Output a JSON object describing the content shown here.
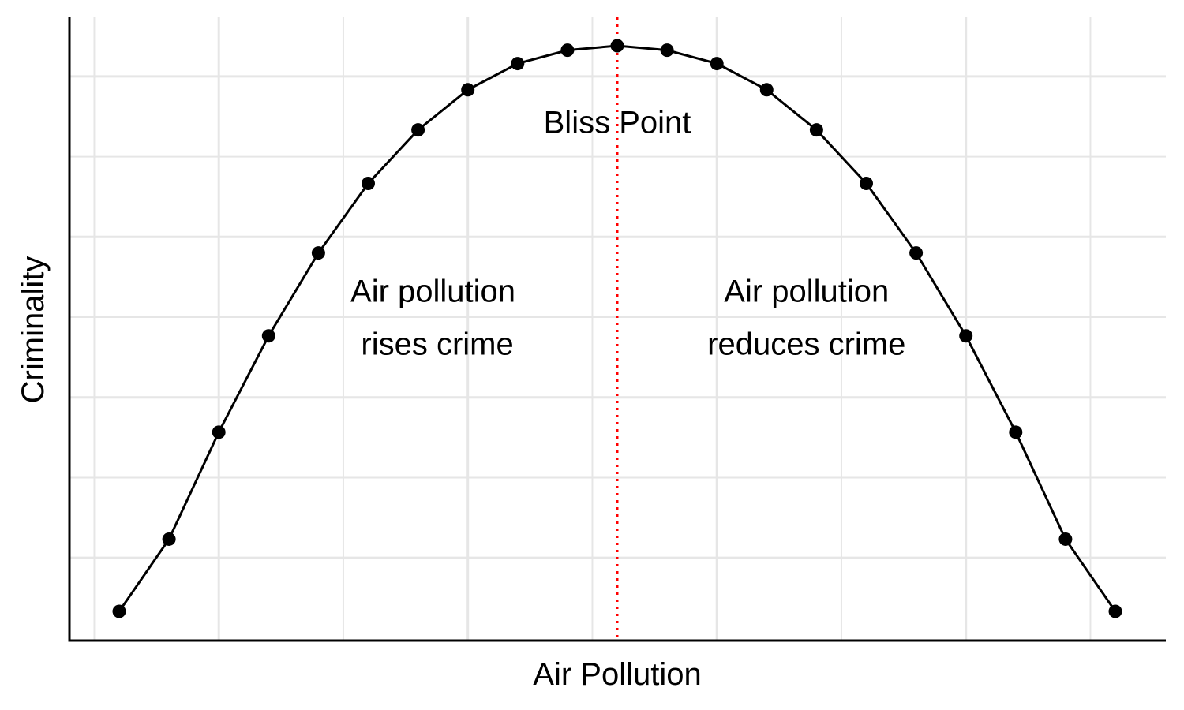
{
  "chart_data": {
    "type": "line",
    "xlabel": "Air Pollution",
    "ylabel": "Criminality",
    "xlim": [
      -10.5,
      11.5
    ],
    "ylim": [
      -0.1,
      1.03
    ],
    "grid": true,
    "legend": "none",
    "x_grid_major": [
      -8,
      -3,
      2,
      7
    ],
    "x_grid_minor": [
      -10.5,
      -5.5,
      -0.5,
      4.5,
      9.5
    ],
    "y_grid_major": [
      0.1,
      0.4,
      0.7,
      1.0
    ],
    "y_grid_minor": [
      0.25,
      0.55,
      0.85
    ],
    "series": [
      {
        "x": [
          -10,
          -9,
          -8,
          -7,
          -6,
          -5,
          -4,
          -3,
          -2,
          -1,
          0,
          1,
          2,
          3,
          4,
          5,
          6,
          7,
          8,
          9,
          10
        ],
        "y": [
          0.0,
          0.135,
          0.335,
          0.515,
          0.67,
          0.8,
          0.9,
          0.975,
          1.024,
          1.049,
          1.0573,
          1.049,
          1.024,
          0.975,
          0.9,
          0.8,
          0.67,
          0.515,
          0.335,
          0.135,
          0.0
        ],
        "color": "#000000"
      }
    ],
    "reference_line": {
      "x": 0,
      "color": "#ff0000",
      "style": "dotted"
    },
    "annotations": [
      {
        "lines": [
          "Bliss Point"
        ],
        "x": 0,
        "y": 0.915
      },
      {
        "lines": [
          "Air pollution",
          " rises crime"
        ],
        "x": -3.7,
        "y": 0.55
      },
      {
        "lines": [
          "Air pollution",
          "reduces crime"
        ],
        "x": 3.8,
        "y": 0.55
      }
    ]
  }
}
